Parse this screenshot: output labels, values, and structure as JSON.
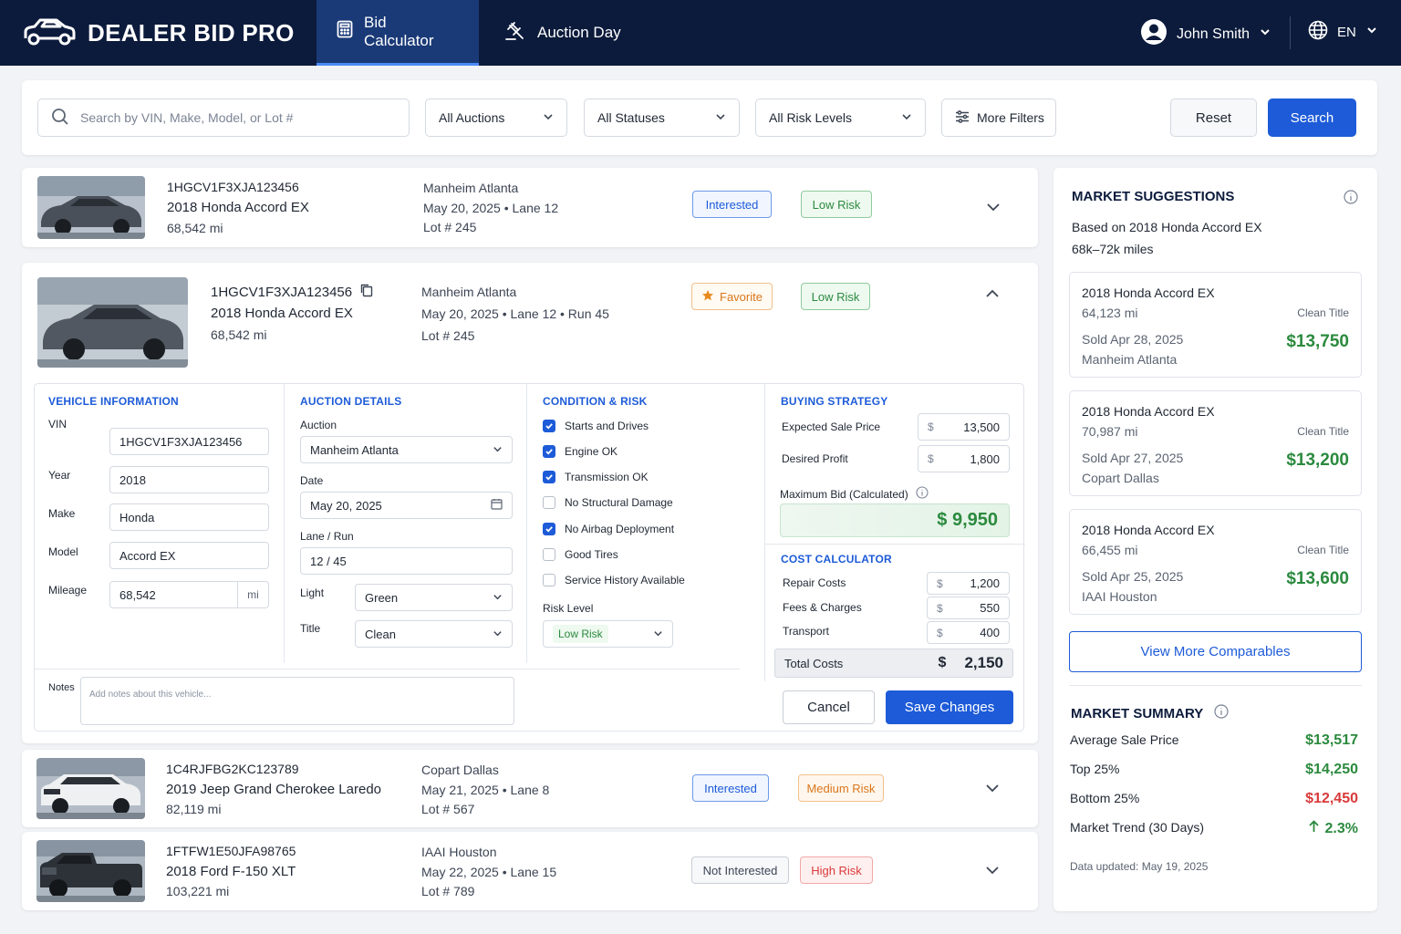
{
  "brand": {
    "name": "DEALER BID PRO"
  },
  "nav": {
    "tabs": [
      {
        "label": "Bid Calculator"
      },
      {
        "label": "Auction Day"
      }
    ]
  },
  "user": {
    "name": "John Smith",
    "language": "EN"
  },
  "filters": {
    "search_placeholder": "Search by VIN, Make, Model, or Lot #",
    "auctions": "All Auctions",
    "statuses": "All Statuses",
    "risk_levels": "All Risk Levels",
    "more_filters": "More Filters",
    "reset": "Reset",
    "search": "Search"
  },
  "vehicles": [
    {
      "vin": "1HGCV1F3XJA123456",
      "name": "2018 Honda Accord EX",
      "miles": "68,542 mi",
      "auction": "Manheim Atlanta",
      "date_lane": "May 20, 2025  •  Lane 12",
      "lot": "Lot # 245",
      "status": "Interested",
      "risk": "Low Risk"
    },
    {
      "vin": "1HGCV1F3XJA123456",
      "name": "2018 Honda Accord EX",
      "miles": "68,542 mi",
      "auction": "Manheim Atlanta",
      "date_lane": "May 20, 2025  •  Lane 12  •  Run 45",
      "lot": "Lot # 245",
      "status": "Favorite",
      "risk": "Low Risk"
    },
    {
      "vin": "1C4RJFBG2KC123789",
      "name": "2019 Jeep Grand Cherokee Laredo",
      "miles": "82,119 mi",
      "auction": "Copart Dallas",
      "date_lane": "May 21, 2025  •  Lane 8",
      "lot": "Lot # 567",
      "status": "Interested",
      "risk": "Medium Risk"
    },
    {
      "vin": "1FTFW1E50JFA98765",
      "name": "2018 Ford F-150 XLT",
      "miles": "103,221 mi",
      "auction": "IAAI Houston",
      "date_lane": "May 22, 2025  •  Lane 15",
      "lot": "Lot # 789",
      "status": "Not Interested",
      "risk": "High Risk"
    }
  ],
  "detail": {
    "vehicle_info": {
      "heading": "VEHICLE INFORMATION",
      "vin_label": "VIN",
      "vin": "1HGCV1F3XJA123456",
      "year_label": "Year",
      "year": "2018",
      "make_label": "Make",
      "make": "Honda",
      "model_label": "Model",
      "model": "Accord EX",
      "mileage_label": "Mileage",
      "mileage": "68,542",
      "mileage_unit": "mi"
    },
    "auction_details": {
      "heading": "AUCTION DETAILS",
      "auction_label": "Auction",
      "auction": "Manheim Atlanta",
      "date_label": "Date",
      "date": "May 20, 2025",
      "lane_label": "Lane / Run",
      "lane": "12 / 45",
      "light_label": "Light",
      "light": "Green",
      "title_label": "Title",
      "title": "Clean"
    },
    "condition": {
      "heading": "CONDITION & RISK",
      "items": [
        {
          "label": "Starts and Drives",
          "checked": true
        },
        {
          "label": "Engine OK",
          "checked": true
        },
        {
          "label": "Transmission OK",
          "checked": true
        },
        {
          "label": "No Structural Damage",
          "checked": false
        },
        {
          "label": "No Airbag Deployment",
          "checked": true
        },
        {
          "label": "Good Tires",
          "checked": false
        },
        {
          "label": "Service History Available",
          "checked": false
        }
      ],
      "risk_label": "Risk Level",
      "risk": "Low Risk"
    },
    "strategy": {
      "heading": "BUYING STRATEGY",
      "currency": "$",
      "expected_label": "Expected Sale Price",
      "expected": "13,500",
      "profit_label": "Desired Profit",
      "profit": "1,800",
      "max_bid_label": "Maximum Bid (Calculated)",
      "max_bid": "$ 9,950"
    },
    "costs": {
      "heading": "COST CALCULATOR",
      "repair_label": "Repair Costs",
      "repair": "1,200",
      "fees_label": "Fees & Charges",
      "fees": "550",
      "transport_label": "Transport",
      "transport": "400",
      "total_label": "Total Costs",
      "total": "2,150"
    },
    "notes_label": "Notes",
    "notes_placeholder": "Add notes about this vehicle...",
    "cancel": "Cancel",
    "save": "Save Changes"
  },
  "market": {
    "heading": "MARKET SUGGESTIONS",
    "based_on": "Based on 2018 Honda Accord EX",
    "miles_range": "68k–72k miles",
    "comparables": [
      {
        "title": "2018 Honda Accord EX",
        "miles": "64,123 mi",
        "condition": "Clean Title",
        "sold": "Sold Apr 28, 2025",
        "location": "Manheim Atlanta",
        "price": "$13,750"
      },
      {
        "title": "2018 Honda Accord EX",
        "miles": "70,987 mi",
        "condition": "Clean Title",
        "sold": "Sold Apr 27, 2025",
        "location": "Copart Dallas",
        "price": "$13,200"
      },
      {
        "title": "2018 Honda Accord EX",
        "miles": "66,455 mi",
        "condition": "Clean Title",
        "sold": "Sold Apr 25, 2025",
        "location": "IAAI Houston",
        "price": "$13,600"
      }
    ],
    "view_more": "View More Comparables",
    "summary_heading": "MARKET SUMMARY",
    "summary": [
      {
        "label": "Average Sale Price",
        "value": "$13,517"
      },
      {
        "label": "Top 25%",
        "value": "$14,250"
      },
      {
        "label": "Bottom 25%",
        "value": "$12,450"
      },
      {
        "label": "Market Trend (30 Days)",
        "value": "2.3%"
      }
    ],
    "updated": "Data updated: May 19, 2025"
  },
  "colors": {
    "navy": "#0c1b3c",
    "accent": "#1d5bd8",
    "green": "#2b8a3e",
    "red": "#d93a3a",
    "orange": "#d9761a"
  }
}
